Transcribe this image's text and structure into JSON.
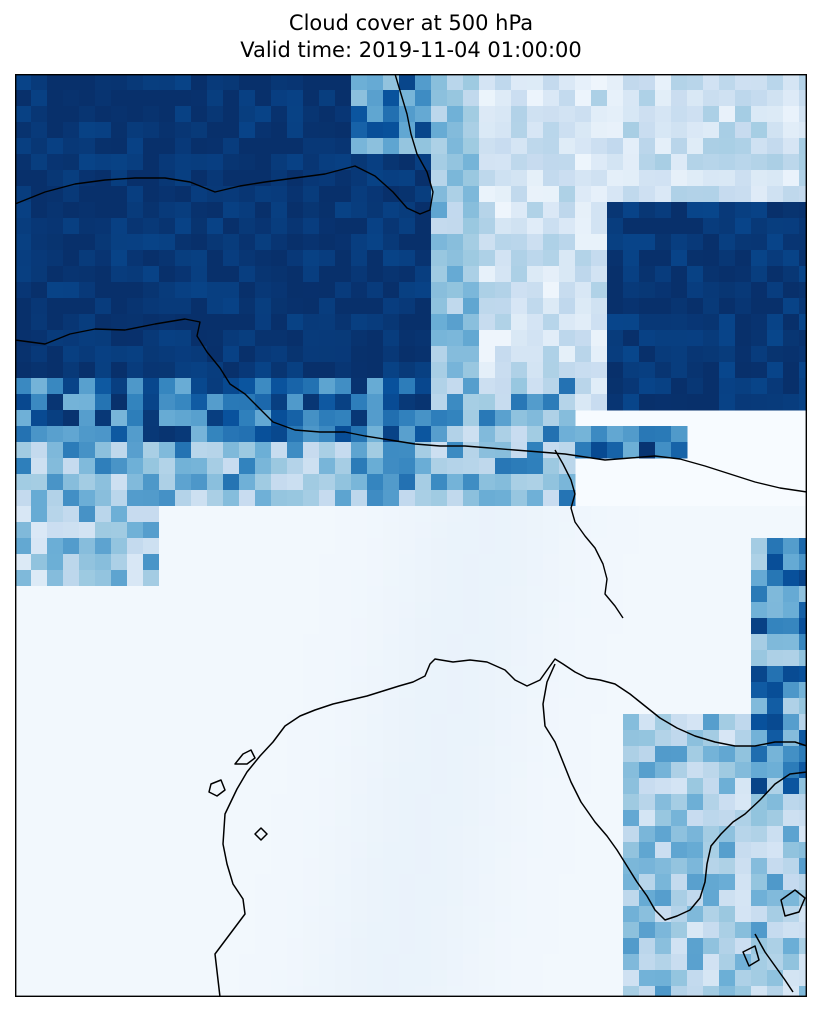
{
  "title": "Cloud cover at 500 hPa",
  "subtitle": "Valid time: 2019-11-04 01:00:00",
  "colormap": {
    "name": "Blues",
    "low": "#f7fbff",
    "mid": "#6baed6",
    "high": "#08306b"
  },
  "map": {
    "field": "cloud cover",
    "level": "500 hPa",
    "features": [
      "coastlines",
      "country-borders"
    ],
    "regions": [
      {
        "name": "north-west-overcast",
        "cover": 1.0
      },
      {
        "name": "north-east-overcast",
        "cover": 1.0
      },
      {
        "name": "central-north-broken-band",
        "cover": 0.4
      },
      {
        "name": "south-clear",
        "cover": 0.0
      },
      {
        "name": "south-east-scattered",
        "cover": 0.5
      }
    ]
  }
}
